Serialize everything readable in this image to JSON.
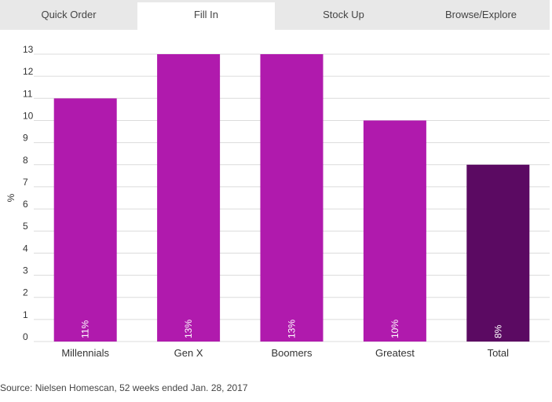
{
  "tabs": [
    {
      "label": "Quick Order",
      "active": false
    },
    {
      "label": "Fill In",
      "active": true
    },
    {
      "label": "Stock Up",
      "active": false
    },
    {
      "label": "Browse/Explore",
      "active": false
    }
  ],
  "chart_data": {
    "type": "bar",
    "categories": [
      "Millennials",
      "Gen X",
      "Boomers",
      "Greatest",
      "Total"
    ],
    "values": [
      11,
      13,
      13,
      10,
      8
    ],
    "value_labels": [
      "11%",
      "13%",
      "13%",
      "10%",
      "8%"
    ],
    "ylabel": "%",
    "ylim": [
      0,
      13
    ],
    "yticks": [
      0,
      1,
      2,
      3,
      4,
      5,
      6,
      7,
      8,
      9,
      10,
      11,
      12,
      13
    ],
    "grid": true,
    "colors": {
      "bar": "#b01aad",
      "total_bar": "#5b0a62",
      "grid": "#dcdcdc",
      "label": "#ffffff"
    }
  },
  "source": "Source: Nielsen Homescan, 52 weeks ended Jan. 28, 2017"
}
